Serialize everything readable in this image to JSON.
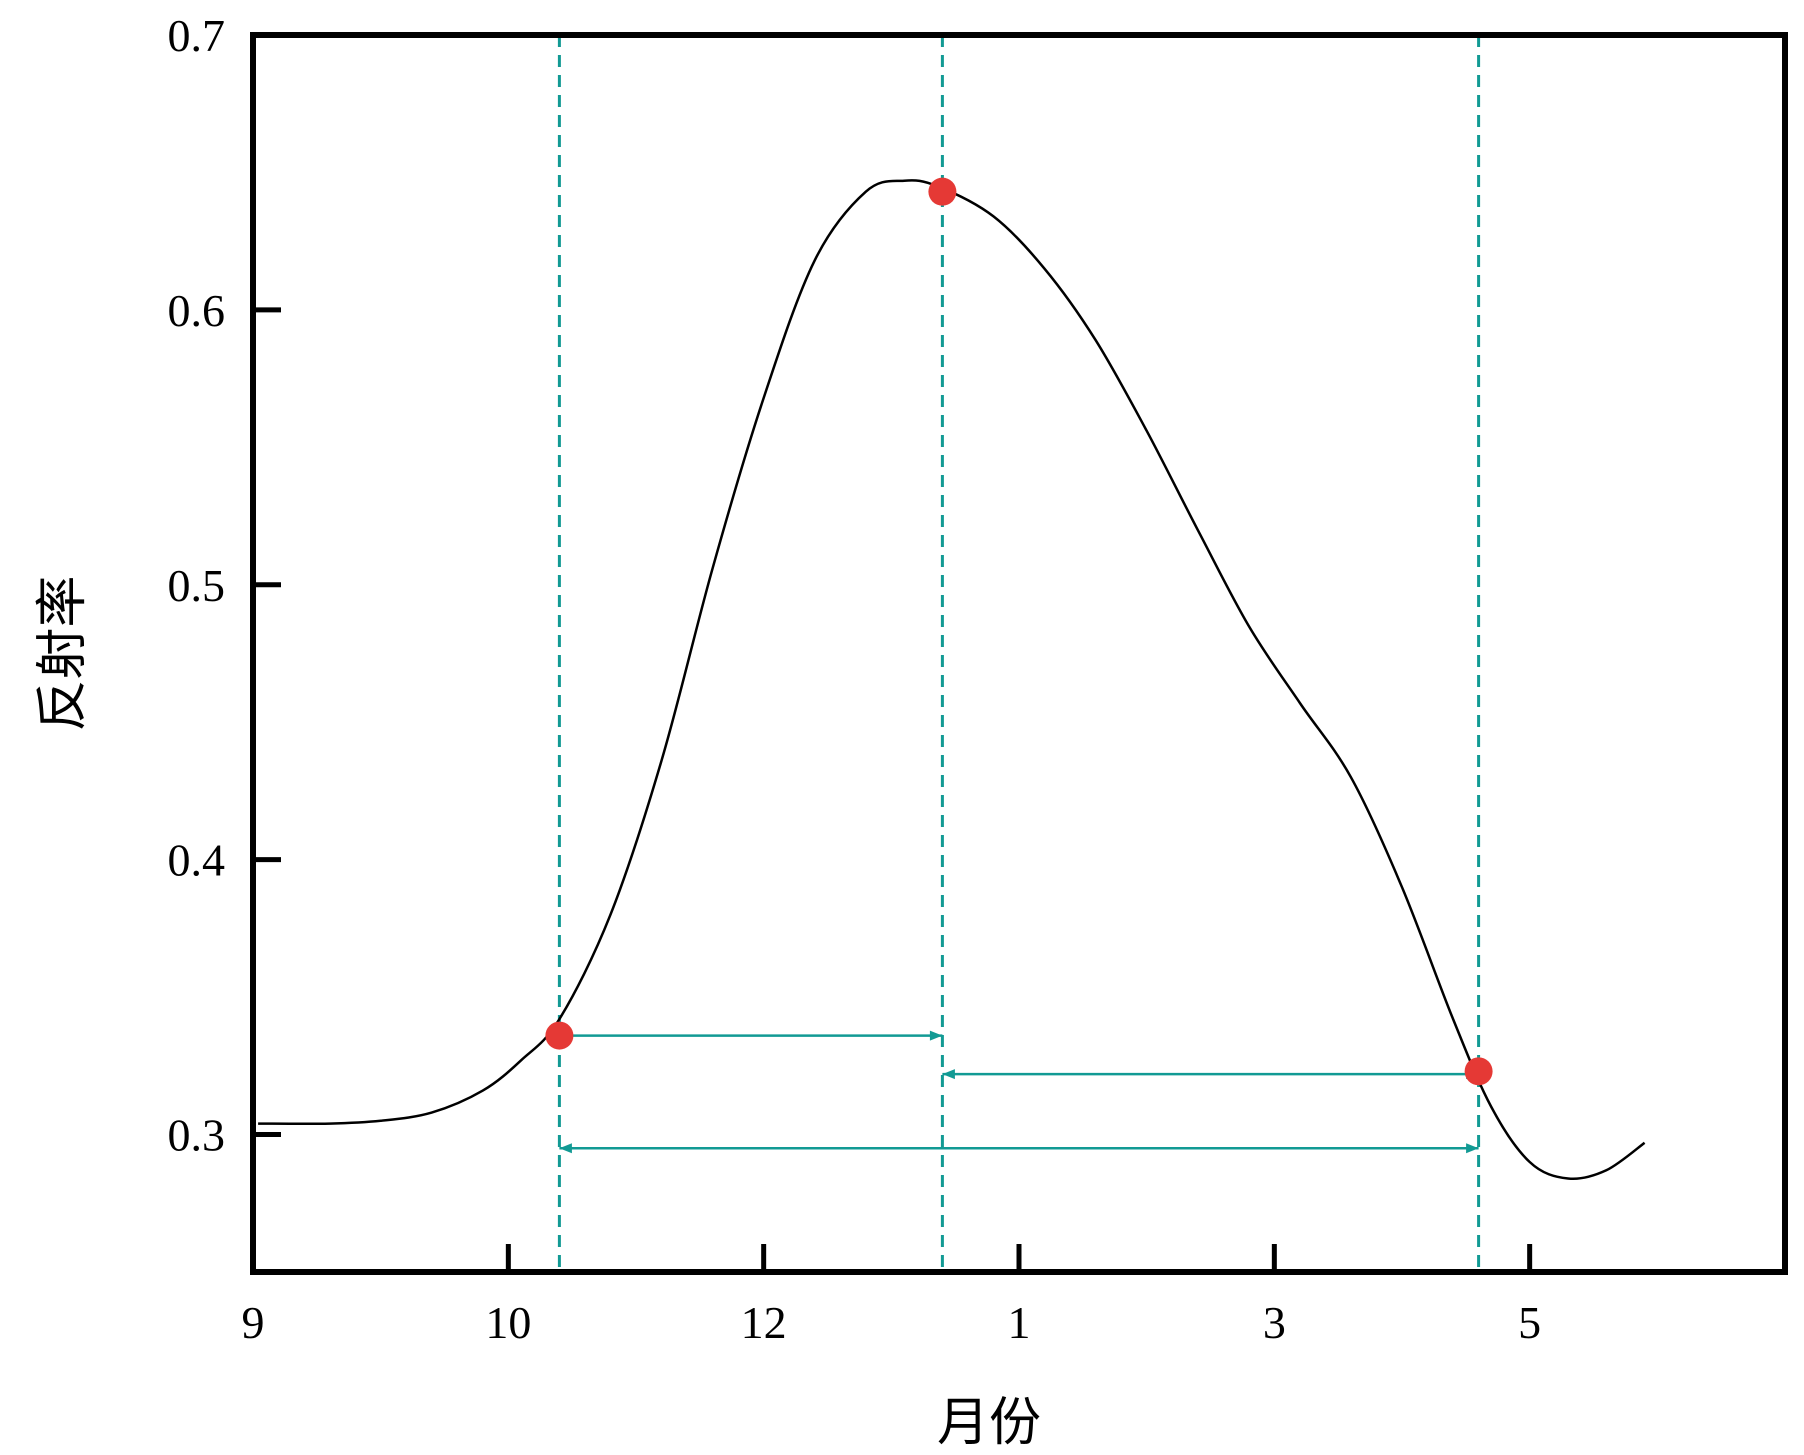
{
  "chart_data": {
    "type": "line",
    "title": "",
    "xlabel": "月份",
    "ylabel": "反射率",
    "x_tick_labels": [
      {
        "x": 0,
        "label": "9"
      },
      {
        "x": 1,
        "label": "10"
      },
      {
        "x": 2,
        "label": "12"
      },
      {
        "x": 3,
        "label": "1"
      },
      {
        "x": 4,
        "label": "3"
      },
      {
        "x": 5,
        "label": "5"
      }
    ],
    "xlim": [
      0,
      6
    ],
    "y_ticks": [
      {
        "y": 0.3,
        "label": "0.3"
      },
      {
        "y": 0.4,
        "label": "0.4"
      },
      {
        "y": 0.5,
        "label": "0.5"
      },
      {
        "y": 0.6,
        "label": "0.6"
      },
      {
        "y": 0.7,
        "label": "0.7"
      }
    ],
    "ylim": [
      0.25,
      0.7
    ],
    "grid": false,
    "colors": {
      "curve": "#000000",
      "marker": "#e53935",
      "guide": "#129a94",
      "axis": "#000000"
    },
    "series": [
      {
        "points": [
          [
            0.02,
            0.304
          ],
          [
            0.3,
            0.304
          ],
          [
            0.5,
            0.305
          ],
          [
            0.7,
            0.308
          ],
          [
            0.9,
            0.316
          ],
          [
            1.05,
            0.327
          ],
          [
            1.2,
            0.342
          ],
          [
            1.4,
            0.38
          ],
          [
            1.6,
            0.436
          ],
          [
            1.8,
            0.506
          ],
          [
            2.0,
            0.568
          ],
          [
            2.2,
            0.618
          ],
          [
            2.4,
            0.643
          ],
          [
            2.55,
            0.647
          ],
          [
            2.68,
            0.645
          ],
          [
            2.9,
            0.634
          ],
          [
            3.1,
            0.615
          ],
          [
            3.3,
            0.589
          ],
          [
            3.5,
            0.556
          ],
          [
            3.7,
            0.52
          ],
          [
            3.9,
            0.485
          ],
          [
            4.1,
            0.457
          ],
          [
            4.3,
            0.43
          ],
          [
            4.5,
            0.39
          ],
          [
            4.7,
            0.342
          ],
          [
            4.85,
            0.31
          ],
          [
            5.0,
            0.29
          ],
          [
            5.15,
            0.284
          ],
          [
            5.3,
            0.287
          ],
          [
            5.45,
            0.297
          ]
        ]
      }
    ],
    "markers": [
      {
        "x": 1.2,
        "y": 0.336
      },
      {
        "x": 2.7,
        "y": 0.643
      },
      {
        "x": 4.8,
        "y": 0.323
      }
    ],
    "vertical_lines": [
      1.2,
      2.7,
      4.8
    ],
    "arrows": [
      {
        "x1": 1.2,
        "x2": 2.7,
        "y": 0.336
      },
      {
        "x1": 2.7,
        "x2": 4.8,
        "y": 0.322
      },
      {
        "x1": 1.2,
        "x2": 4.8,
        "y": 0.295
      }
    ]
  }
}
